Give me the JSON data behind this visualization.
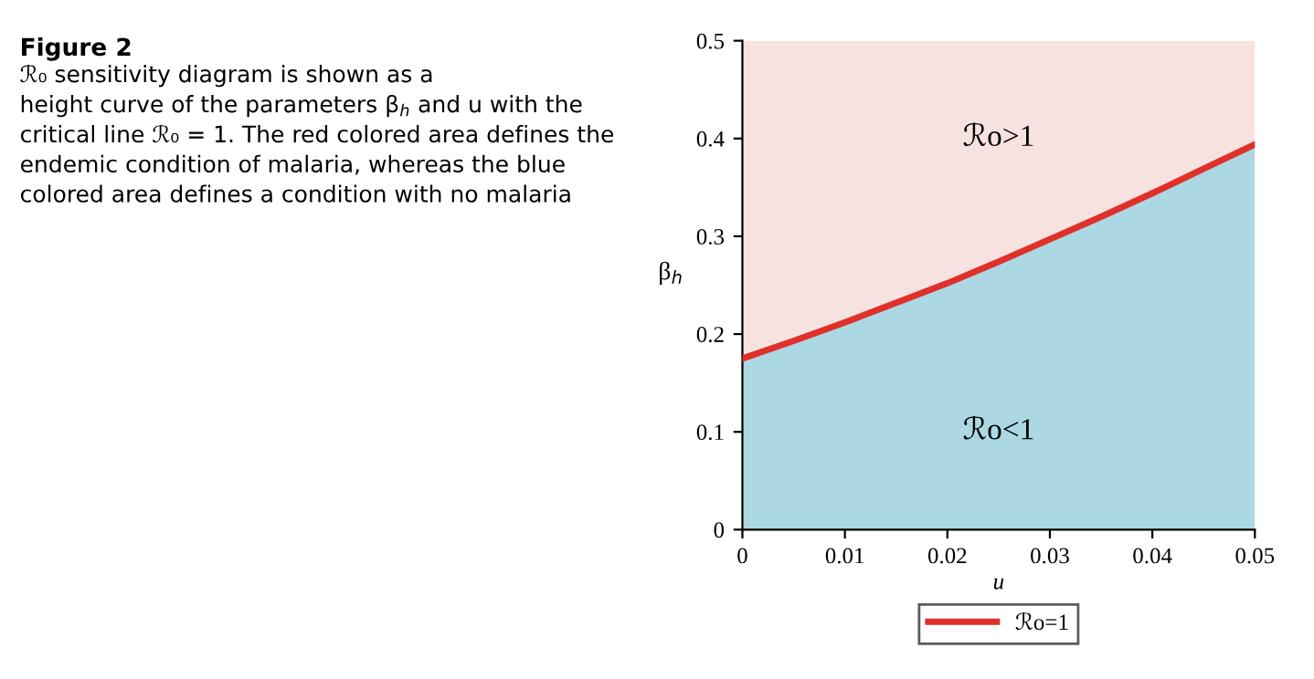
{
  "chart_data": {
    "type": "area",
    "title": "Figure 2",
    "annotations": [
      "ℛ₀ sensitivity diagram is shown as a\nheight curve of the parameters β$_{h}$ and u with the\ncritical line ℛ₀ = 1. The red colored area defines the\nendemic condition of malaria, whereas the blue\ncolored area defines a condition with no malaria",
      "ℛo>1",
      "ℛo<1"
    ],
    "xlabel": "u",
    "ylabel": "β$_{h}$",
    "x": [
      0,
      0.005,
      0.01,
      0.015,
      0.02,
      0.025,
      0.03,
      0.035,
      0.04,
      0.045,
      0.05
    ],
    "series": [
      {
        "color": "#acd8e4",
        "values": [
          0.175,
          0.193,
          0.212,
          0.232,
          0.252,
          0.274,
          0.297,
          0.32,
          0.344,
          0.369,
          0.394
        ]
      },
      {
        "type": "line",
        "name": "ℛo=1",
        "color": "#e0302a",
        "values": [
          0.175,
          0.193,
          0.212,
          0.232,
          0.252,
          0.274,
          0.297,
          0.32,
          0.344,
          0.369,
          0.394
        ]
      }
    ],
    "bands": [
      {
        "axis": "y",
        "from": 0,
        "to": 0.5,
        "color": "#f8e2e0"
      }
    ],
    "xlim": [
      0,
      0.05
    ],
    "ylim": [
      0,
      0.5
    ],
    "xticks": [
      0,
      0.01,
      0.02,
      0.03,
      0.04,
      0.05
    ],
    "yticks": [
      0,
      0.1,
      0.2,
      0.3,
      0.4,
      0.5
    ],
    "legend": "bottom",
    "grid": false
  }
}
